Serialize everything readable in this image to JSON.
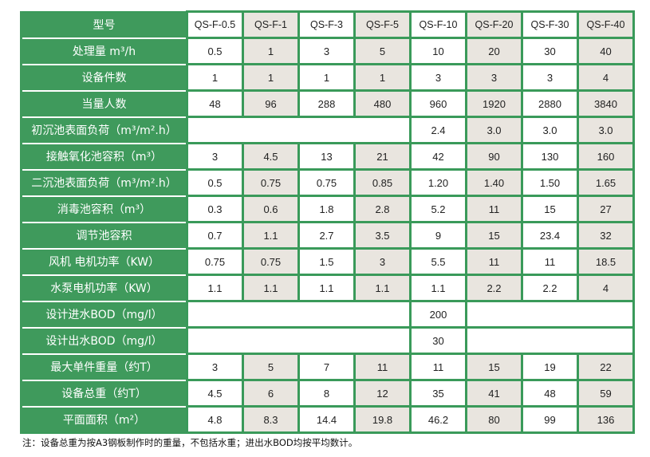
{
  "colors": {
    "green": "#3f9a5c",
    "shade": "#e9e5df"
  },
  "header": {
    "label": "型号",
    "models": [
      "QS-F-0.5",
      "QS-F-1",
      "QS-F-3",
      "QS-F-5",
      "QS-F-10",
      "QS-F-20",
      "QS-F-30",
      "QS-F-40"
    ]
  },
  "rows": [
    {
      "label": "处理量 m³/h",
      "cells": [
        "0.5",
        "1",
        "3",
        "5",
        "10",
        "20",
        "30",
        "40"
      ]
    },
    {
      "label": "设备件数",
      "cells": [
        "1",
        "1",
        "1",
        "1",
        "3",
        "3",
        "3",
        "4"
      ]
    },
    {
      "label": "当量人数",
      "cells": [
        "48",
        "96",
        "288",
        "480",
        "960",
        "1920",
        "2880",
        "3840"
      ]
    },
    {
      "label": "初沉池表面负荷（m³/m².h）",
      "merged_blank": 4,
      "cells": [
        "2.4",
        "3.0",
        "3.0",
        "3.0"
      ]
    },
    {
      "label": "接触氧化池容积（m³）",
      "cells": [
        "3",
        "4.5",
        "13",
        "21",
        "42",
        "90",
        "130",
        "160"
      ]
    },
    {
      "label": "二沉池表面负荷（m³/m².h）",
      "cells": [
        "0.5",
        "0.75",
        "0.75",
        "0.85",
        "1.20",
        "1.40",
        "1.50",
        "1.65"
      ]
    },
    {
      "label": "消毒池容积（m³）",
      "cells": [
        "0.3",
        "0.6",
        "1.8",
        "2.8",
        "5.2",
        "11",
        "15",
        "27"
      ]
    },
    {
      "label": "调节池容积",
      "cells": [
        "0.7",
        "1.1",
        "2.7",
        "3.5",
        "9",
        "15",
        "23.4",
        "32"
      ]
    },
    {
      "label": "风机 电机功率（KW）",
      "cells": [
        "0.75",
        "0.75",
        "1.5",
        "3",
        "5.5",
        "11",
        "11",
        "18.5"
      ]
    },
    {
      "label": "水泵电机功率（KW）",
      "cells": [
        "1.1",
        "1.1",
        "1.1",
        "1.1",
        "1.1",
        "2.2",
        "2.2",
        "4"
      ]
    },
    {
      "label": "设计进水BOD（mg/l）",
      "bod": true,
      "value": "200"
    },
    {
      "label": "设计出水BOD（mg/l）",
      "bod": true,
      "value": "30"
    },
    {
      "label": "最大单件重量（约T）",
      "cells": [
        "3",
        "5",
        "7",
        "11",
        "11",
        "15",
        "19",
        "22"
      ]
    },
    {
      "label": "设备总重（约T）",
      "cells": [
        "4.5",
        "6",
        "8",
        "12",
        "35",
        "41",
        "48",
        "59"
      ]
    },
    {
      "label": "平面面积（m²）",
      "cells": [
        "4.8",
        "8.3",
        "14.4",
        "19.8",
        "46.2",
        "80",
        "99",
        "136"
      ]
    }
  ],
  "note": "注：设备总重为按A3钢板制作时的重量，不包括水重；进出水BOD均按平均数计。"
}
